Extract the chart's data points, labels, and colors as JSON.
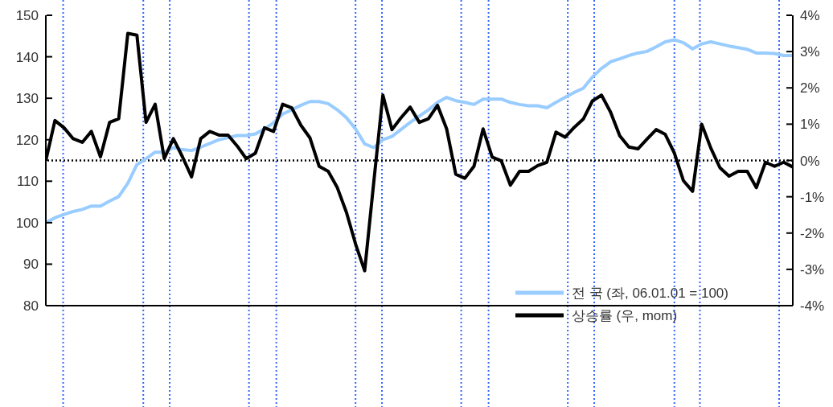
{
  "chart_data": {
    "type": "line",
    "categories": [
      null,
      null,
      null,
      null,
      null,
      null,
      null,
      null,
      null,
      null,
      null,
      null,
      null,
      null,
      null,
      null,
      null,
      null,
      null,
      null,
      null,
      null,
      null,
      null,
      null,
      null,
      null,
      null,
      null,
      null,
      null,
      null,
      null,
      null,
      null,
      null,
      null,
      null,
      null,
      null,
      null,
      null,
      null,
      null,
      null,
      null,
      null,
      null,
      null,
      null,
      null,
      null,
      null,
      null,
      null,
      null,
      null,
      null,
      null,
      null,
      null,
      null,
      null,
      null,
      null,
      null,
      null,
      null,
      null,
      null,
      null,
      null,
      null,
      null,
      null,
      null,
      null,
      null,
      null,
      null,
      null,
      null,
      null
    ],
    "series": [
      {
        "name": "전 국 (좌, 06.01.01 = 100)",
        "color": "#99ccff",
        "values": [
          100,
          101.2,
          102,
          102.7,
          103.2,
          104,
          104,
          105.2,
          106.3,
          109.5,
          114,
          115.4,
          117,
          117,
          118.1,
          117.6,
          117.4,
          118.2,
          119.1,
          120,
          120.5,
          121,
          121,
          121.4,
          122.6,
          124.1,
          126.2,
          127.2,
          128.3,
          129.2,
          129.2,
          128.7,
          127.2,
          125.3,
          122.6,
          119,
          118.1,
          120,
          120.8,
          122.5,
          124.2,
          125.7,
          127.2,
          129,
          130.2,
          129.4,
          129,
          128.5,
          129.8,
          129.8,
          129.8,
          129,
          128.5,
          128.2,
          128.2,
          127.7,
          129,
          130.2,
          131.4,
          132.4,
          135.1,
          137.2,
          138.8,
          139.5,
          140.3,
          140.9,
          141.3,
          142.4,
          143.6,
          144.1,
          143.4,
          141.9,
          143.1,
          143.6,
          143.1,
          142.6,
          142.2,
          141.8,
          140.9,
          140.9,
          140.8,
          140.3,
          140.3
        ]
      },
      {
        "name": "상승률 (우, mom)",
        "color": "#000000",
        "axis": "y2",
        "values": [
          0,
          1.1,
          0.9,
          0.6,
          0.5,
          0.8,
          0.1,
          1.05,
          1.15,
          3.5,
          3.45,
          1.05,
          1.55,
          0.05,
          0.6,
          0.1,
          -0.45,
          0.6,
          0.8,
          0.7,
          0.7,
          0.4,
          0.05,
          0.2,
          0.9,
          0.8,
          1.55,
          1.45,
          0.97,
          0.62,
          -0.16,
          -0.3,
          -0.75,
          -1.43,
          -2.3,
          -3.04,
          -0.6,
          1.8,
          0.85,
          1.18,
          1.47,
          1.05,
          1.15,
          1.52,
          0.87,
          -0.38,
          -0.49,
          -0.16,
          0.87,
          0.09,
          -0.01,
          -0.68,
          -0.3,
          -0.3,
          -0.14,
          -0.05,
          0.78,
          0.64,
          0.91,
          1.14,
          1.64,
          1.8,
          1.33,
          0.68,
          0.37,
          0.32,
          0.59,
          0.85,
          0.72,
          0.2,
          -0.56,
          -0.85,
          1.0,
          0.34,
          -0.2,
          -0.43,
          -0.3,
          -0.3,
          -0.75,
          -0.05,
          -0.16,
          -0.05,
          -0.18
        ]
      }
    ],
    "ylim": [
      80,
      150
    ],
    "yticks": [
      80,
      90,
      100,
      110,
      120,
      130,
      140,
      150
    ],
    "y2lim": [
      -4,
      4
    ],
    "y2ticks": [
      {
        "value": -4,
        "label": "-4%"
      },
      {
        "value": -3,
        "label": "-3%"
      },
      {
        "value": -2,
        "label": "-2%"
      },
      {
        "value": -1,
        "label": "-1%"
      },
      {
        "value": 0,
        "label": "0%"
      },
      {
        "value": 1,
        "label": "1%"
      },
      {
        "value": 2,
        "label": "2%"
      },
      {
        "value": 3,
        "label": "3%"
      },
      {
        "value": 4,
        "label": "4%"
      }
    ],
    "ref_lines": [
      {
        "axis": "y2",
        "value": 0,
        "color": "#000000",
        "line_style": "dotted"
      }
    ],
    "tick_labels": "y",
    "legend": "bottom right",
    "grid": "x",
    "marker": "none",
    "line_style": "solid"
  }
}
